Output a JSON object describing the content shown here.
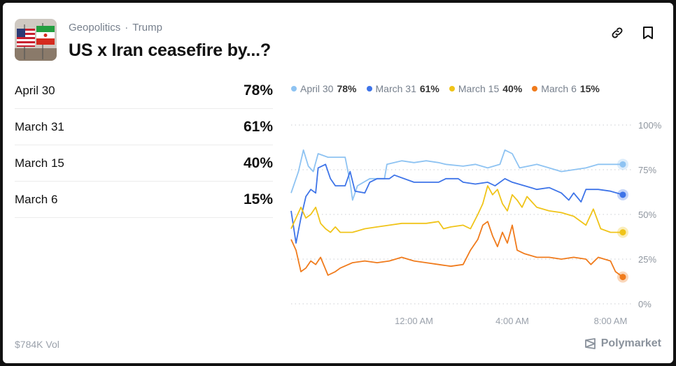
{
  "header": {
    "category": "Geopolitics",
    "separator": "·",
    "subcategory": "Trump",
    "title": "US x Iran ceasefire by...?",
    "thumbnail_icon": "us-iran-flags-icon"
  },
  "actions": {
    "link_icon": "link-icon",
    "bookmark_icon": "bookmark-icon"
  },
  "outcomes": [
    {
      "label": "April 30",
      "pct": "78%"
    },
    {
      "label": "March 31",
      "pct": "61%"
    },
    {
      "label": "March 15",
      "pct": "40%"
    },
    {
      "label": "March 6",
      "pct": "15%"
    }
  ],
  "footer": {
    "volume": "$784K Vol",
    "brand": "Polymarket"
  },
  "colors": {
    "april30": "#8ec3f2",
    "march31": "#3e74e8",
    "march15": "#f0c419",
    "march6": "#f07b1c"
  },
  "chart_data": {
    "type": "line",
    "x_labels": [
      "12:00 AM",
      "4:00 AM",
      "8:00 AM"
    ],
    "x_label_positions": [
      5,
      9,
      13
    ],
    "x_range": [
      0,
      13.5
    ],
    "y_ticks": [
      "100%",
      "75%",
      "50%",
      "25%",
      "0%"
    ],
    "ylim": [
      0,
      100
    ],
    "legend": "top",
    "grid": true,
    "series": [
      {
        "name": "April 30",
        "label": "78%",
        "color": "#8ec3f2",
        "points": [
          [
            0,
            62
          ],
          [
            0.3,
            74
          ],
          [
            0.5,
            86
          ],
          [
            0.7,
            77
          ],
          [
            0.9,
            74
          ],
          [
            1.1,
            84
          ],
          [
            1.5,
            82
          ],
          [
            2.2,
            82
          ],
          [
            2.4,
            68
          ],
          [
            2.5,
            58
          ],
          [
            2.7,
            66
          ],
          [
            3.2,
            70
          ],
          [
            3.8,
            70
          ],
          [
            3.9,
            78
          ],
          [
            4.5,
            80
          ],
          [
            5,
            79
          ],
          [
            5.5,
            80
          ],
          [
            6,
            79
          ],
          [
            6.3,
            78
          ],
          [
            7,
            77
          ],
          [
            7.5,
            78
          ],
          [
            8,
            76
          ],
          [
            8.5,
            78
          ],
          [
            8.7,
            86
          ],
          [
            9,
            84
          ],
          [
            9.3,
            76
          ],
          [
            10,
            78
          ],
          [
            10.5,
            76
          ],
          [
            11,
            74
          ],
          [
            12,
            76
          ],
          [
            12.5,
            78
          ],
          [
            13.5,
            78
          ]
        ]
      },
      {
        "name": "March 31",
        "label": "61%",
        "color": "#3e74e8",
        "points": [
          [
            0,
            52
          ],
          [
            0.2,
            34
          ],
          [
            0.4,
            48
          ],
          [
            0.6,
            60
          ],
          [
            0.8,
            64
          ],
          [
            1,
            62
          ],
          [
            1.1,
            76
          ],
          [
            1.4,
            78
          ],
          [
            1.6,
            70
          ],
          [
            1.8,
            66
          ],
          [
            2.2,
            66
          ],
          [
            2.4,
            74
          ],
          [
            2.6,
            63
          ],
          [
            3,
            62
          ],
          [
            3.2,
            68
          ],
          [
            3.5,
            70
          ],
          [
            4,
            70
          ],
          [
            4.2,
            72
          ],
          [
            5,
            68
          ],
          [
            6,
            68
          ],
          [
            6.3,
            70
          ],
          [
            6.8,
            70
          ],
          [
            7,
            68
          ],
          [
            7.5,
            67
          ],
          [
            8,
            68
          ],
          [
            8.3,
            66
          ],
          [
            8.7,
            70
          ],
          [
            9,
            68
          ],
          [
            9.5,
            66
          ],
          [
            10,
            64
          ],
          [
            10.5,
            65
          ],
          [
            11,
            62
          ],
          [
            11.3,
            58
          ],
          [
            11.5,
            62
          ],
          [
            11.8,
            57
          ],
          [
            12,
            64
          ],
          [
            12.5,
            64
          ],
          [
            13,
            63
          ],
          [
            13.5,
            61
          ]
        ]
      },
      {
        "name": "March 15",
        "label": "40%",
        "color": "#f0c419",
        "points": [
          [
            0,
            42
          ],
          [
            0.2,
            48
          ],
          [
            0.4,
            54
          ],
          [
            0.6,
            48
          ],
          [
            0.8,
            50
          ],
          [
            1,
            54
          ],
          [
            1.2,
            45
          ],
          [
            1.4,
            42
          ],
          [
            1.6,
            40
          ],
          [
            1.8,
            43
          ],
          [
            2,
            40
          ],
          [
            2.5,
            40
          ],
          [
            3,
            42
          ],
          [
            3.5,
            43
          ],
          [
            4,
            44
          ],
          [
            4.5,
            45
          ],
          [
            5,
            45
          ],
          [
            5.5,
            45
          ],
          [
            6,
            46
          ],
          [
            6.2,
            42
          ],
          [
            6.5,
            43
          ],
          [
            7,
            44
          ],
          [
            7.3,
            42
          ],
          [
            7.6,
            50
          ],
          [
            7.8,
            56
          ],
          [
            8,
            66
          ],
          [
            8.2,
            61
          ],
          [
            8.4,
            64
          ],
          [
            8.6,
            56
          ],
          [
            8.8,
            52
          ],
          [
            9,
            61
          ],
          [
            9.2,
            58
          ],
          [
            9.4,
            54
          ],
          [
            9.6,
            60
          ],
          [
            9.8,
            57
          ],
          [
            10,
            54
          ],
          [
            10.5,
            52
          ],
          [
            11,
            51
          ],
          [
            11.5,
            49
          ],
          [
            12,
            44
          ],
          [
            12.3,
            53
          ],
          [
            12.6,
            42
          ],
          [
            13,
            40
          ],
          [
            13.5,
            40
          ]
        ]
      },
      {
        "name": "March 6",
        "label": "15%",
        "color": "#f07b1c",
        "points": [
          [
            0,
            36
          ],
          [
            0.2,
            30
          ],
          [
            0.4,
            18
          ],
          [
            0.6,
            20
          ],
          [
            0.8,
            24
          ],
          [
            1,
            22
          ],
          [
            1.2,
            26
          ],
          [
            1.5,
            16
          ],
          [
            1.8,
            18
          ],
          [
            2,
            20
          ],
          [
            2.5,
            23
          ],
          [
            3,
            24
          ],
          [
            3.5,
            23
          ],
          [
            4,
            24
          ],
          [
            4.5,
            26
          ],
          [
            5,
            24
          ],
          [
            5.5,
            23
          ],
          [
            6,
            22
          ],
          [
            6.5,
            21
          ],
          [
            7,
            22
          ],
          [
            7.3,
            30
          ],
          [
            7.6,
            36
          ],
          [
            7.8,
            44
          ],
          [
            8,
            46
          ],
          [
            8.2,
            38
          ],
          [
            8.4,
            32
          ],
          [
            8.6,
            40
          ],
          [
            8.8,
            34
          ],
          [
            9,
            44
          ],
          [
            9.2,
            30
          ],
          [
            9.5,
            28
          ],
          [
            10,
            26
          ],
          [
            10.5,
            26
          ],
          [
            11,
            25
          ],
          [
            11.5,
            26
          ],
          [
            12,
            25
          ],
          [
            12.2,
            22
          ],
          [
            12.5,
            26
          ],
          [
            13,
            24
          ],
          [
            13.2,
            18
          ],
          [
            13.5,
            15
          ]
        ]
      }
    ]
  }
}
